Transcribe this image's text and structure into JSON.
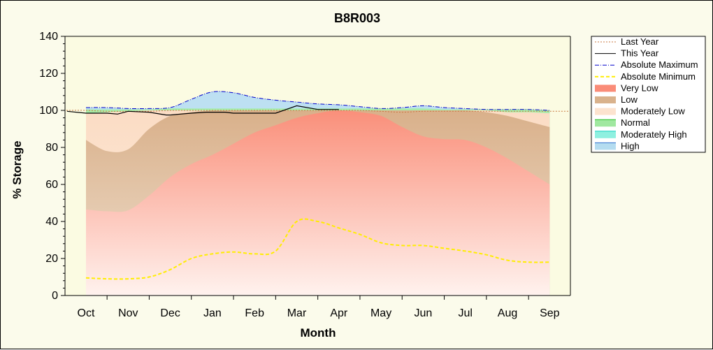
{
  "chart_data": {
    "type": "area",
    "title": "B8R003",
    "xlabel": "Month",
    "ylabel": "% Storage",
    "ylim": [
      0,
      140
    ],
    "yticks": [
      0,
      20,
      40,
      60,
      80,
      100,
      120,
      140
    ],
    "grid": false,
    "legend_position": "right",
    "categories": [
      "Oct",
      "Nov",
      "Dec",
      "Jan",
      "Feb",
      "Mar",
      "Apr",
      "May",
      "Jun",
      "Jul",
      "Aug",
      "Sep"
    ],
    "x": [
      0,
      0.5,
      1,
      1.5,
      2,
      2.5,
      3,
      3.5,
      4,
      4.5,
      5,
      5.5,
      6,
      6.5,
      7,
      7.5,
      8,
      8.5,
      9,
      9.5,
      10,
      10.5,
      11
    ],
    "bands": [
      {
        "name": "Very Low",
        "color": "#fa8c78",
        "values": [
          46.5,
          45.5,
          46,
          54,
          64,
          71,
          76,
          82,
          88,
          92,
          96,
          98.5,
          100,
          99,
          97,
          91,
          86,
          84.5,
          84,
          80,
          74,
          67,
          60
        ]
      },
      {
        "name": "Low",
        "color": "#d9b28c",
        "values": [
          84,
          78,
          79,
          90,
          97,
          99,
          100,
          100,
          100,
          100,
          100,
          100,
          100,
          100,
          100,
          100,
          100,
          100,
          100,
          99,
          97,
          94,
          91
        ]
      },
      {
        "name": "Moderately Low",
        "color": "#fce3cf",
        "values": [
          98.5,
          99,
          99.5,
          100,
          100,
          100,
          100,
          100,
          100,
          100,
          100,
          100,
          100,
          100,
          100,
          100,
          100,
          100,
          100,
          100,
          99,
          99,
          98.5
        ]
      },
      {
        "name": "Normal",
        "color": "#a0e8a0",
        "values": [
          100.5,
          100.5,
          100.5,
          100.5,
          101,
          101,
          101,
          101,
          101,
          101,
          101,
          101,
          101,
          101,
          101,
          101,
          101,
          100.5,
          100.5,
          100.5,
          100.5,
          100.5,
          100
        ]
      },
      {
        "name": "Moderately High",
        "color": "#8ff0e0",
        "values": [
          100.5,
          100.5,
          100.5,
          100.5,
          101,
          101,
          101,
          101,
          101,
          101,
          101,
          101,
          101,
          101,
          101,
          101,
          101,
          100.5,
          100.5,
          100.5,
          100.5,
          100.5,
          100
        ]
      },
      {
        "name": "High",
        "color": "#b4dcf0",
        "values": [
          101.5,
          101.5,
          101,
          101,
          101.5,
          106,
          110,
          109.5,
          107,
          105.5,
          104.5,
          103.5,
          103,
          102,
          101,
          101.5,
          102.5,
          101.5,
          101,
          100.5,
          100.5,
          100.5,
          100
        ]
      }
    ],
    "series": [
      {
        "name": "Last Year",
        "color": "#c87840",
        "style": "dotted",
        "values": [
          100,
          99.5,
          99.5,
          99.5,
          100,
          100,
          100,
          100,
          100,
          100,
          100,
          100,
          100,
          100,
          99.5,
          99,
          99.5,
          99.5,
          99.5,
          99.5,
          99.5,
          99.5,
          99.5
        ]
      },
      {
        "name": "This Year",
        "color": "#000000",
        "style": "solid",
        "x": [
          -0.45,
          0,
          0.5,
          0.75,
          1,
          1.5,
          1.9,
          2,
          2.5,
          2.85,
          3.1,
          3.3,
          3.5,
          3.75,
          4,
          4.5,
          5,
          5.5,
          6
        ],
        "values": [
          99.5,
          98.5,
          98.5,
          98,
          99.5,
          99,
          97.5,
          97.5,
          98.5,
          99,
          99,
          99,
          98.5,
          98.5,
          98.5,
          98.5,
          102.5,
          100.5,
          100.5
        ]
      },
      {
        "name": "Absolute Maximum",
        "color": "#0000cc",
        "style": "dashdot",
        "values": [
          101.5,
          101.5,
          101,
          101,
          101.5,
          106,
          110,
          109.5,
          107,
          105.5,
          104.5,
          103.5,
          103,
          102,
          101,
          101.5,
          102.5,
          101.5,
          101,
          100.5,
          100.5,
          100.5,
          100
        ]
      },
      {
        "name": "Absolute Minimum",
        "color": "#ffee00",
        "style": "dashed",
        "values": [
          9.5,
          9,
          9,
          10,
          14,
          20,
          22.5,
          23.5,
          22.5,
          24,
          40,
          40,
          36.5,
          33,
          28.5,
          27,
          27,
          25.5,
          24,
          22,
          19,
          18,
          18
        ]
      }
    ],
    "legend": [
      "Last Year",
      "This Year",
      "Absolute Maximum",
      "Absolute Minimum",
      "Very Low",
      "Low",
      "Moderately Low",
      "Normal",
      "Moderately High",
      "High"
    ]
  }
}
